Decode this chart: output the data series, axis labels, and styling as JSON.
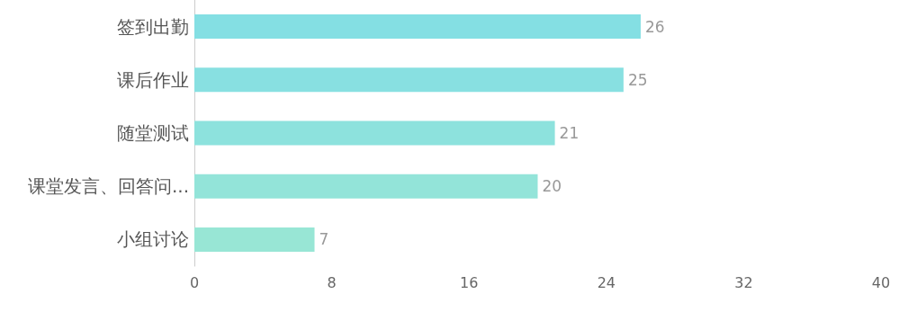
{
  "chart_data": {
    "type": "bar",
    "orientation": "horizontal",
    "categories": [
      "签到出勤",
      "课后作业",
      "随堂测试",
      "课堂发言、回答问...",
      "小组讨论"
    ],
    "values": [
      26,
      25,
      21,
      20,
      7
    ],
    "colors": [
      "#84dfe3",
      "#88e0e1",
      "#8de2dd",
      "#93e4d9",
      "#98e6d5"
    ],
    "xlim": [
      0,
      40
    ],
    "xticks": [
      0,
      8,
      16,
      24,
      32,
      40
    ],
    "grid": false,
    "data_labels": true
  }
}
